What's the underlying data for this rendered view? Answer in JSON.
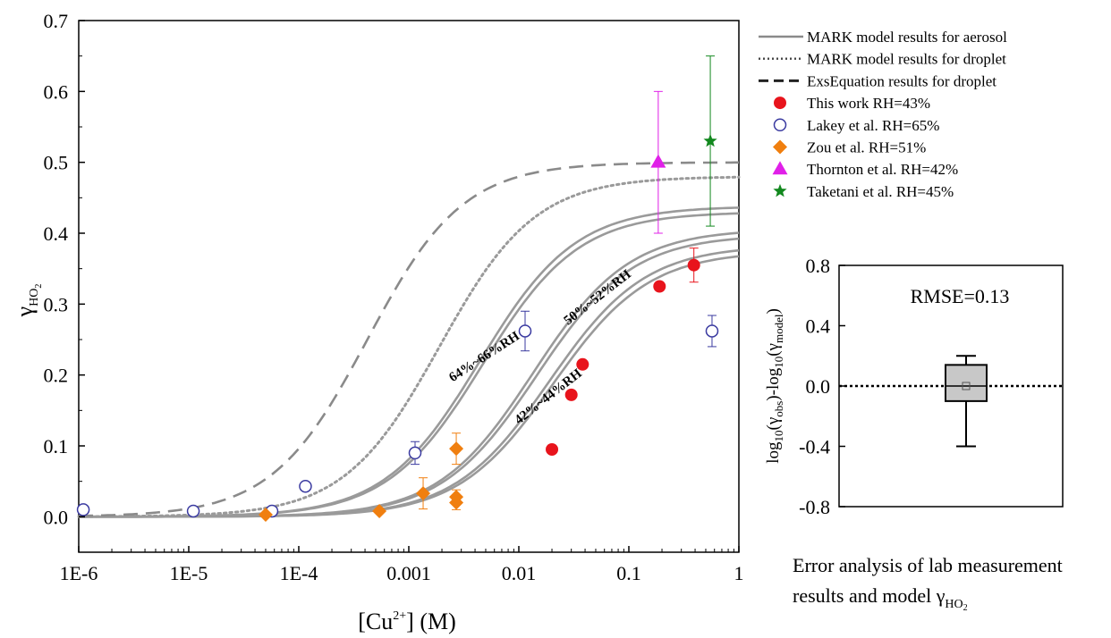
{
  "colors": {
    "model_line": "#9a9a9a",
    "this_work": "#e8141c",
    "lakey": "#3a3aa0",
    "zou": "#f07f0f",
    "thornton": "#e020e8",
    "taketani": "#12881e",
    "box_fill": "#c8c8c8"
  },
  "chart_data": [
    {
      "type": "scatter",
      "x_scale": "log",
      "xlim": [
        1e-06,
        1
      ],
      "ylim": [
        -0.05,
        0.7
      ],
      "xlabel_main": "[Cu",
      "xlabel_sup": "2+",
      "xlabel_tail": "] (M)",
      "ylabel_main": "γ",
      "ylabel_sub": "HO",
      "ylabel_subsub": "2",
      "x_ticks": [
        {
          "value": 1e-06,
          "label": "1E-6"
        },
        {
          "value": 1e-05,
          "label": "1E-5"
        },
        {
          "value": 0.0001,
          "label": "1E-4"
        },
        {
          "value": 0.001,
          "label": "0.001"
        },
        {
          "value": 0.01,
          "label": "0.01"
        },
        {
          "value": 0.1,
          "label": "0.1"
        },
        {
          "value": 1,
          "label": "1"
        }
      ],
      "y_ticks": [
        {
          "value": 0.0,
          "label": "0.0"
        },
        {
          "value": 0.1,
          "label": "0.1"
        },
        {
          "value": 0.2,
          "label": "0.2"
        },
        {
          "value": 0.3,
          "label": "0.3"
        },
        {
          "value": 0.4,
          "label": "0.4"
        },
        {
          "value": 0.5,
          "label": "0.5"
        },
        {
          "value": 0.6,
          "label": "0.6"
        },
        {
          "value": 0.7,
          "label": "0.7"
        }
      ],
      "model_curves": [
        {
          "group": "64%~66%RH",
          "style": "solid",
          "x50": 0.0044,
          "ymax": 0.438
        },
        {
          "group": "64%~66%RH",
          "style": "solid",
          "x50": 0.0047,
          "ymax": 0.43
        },
        {
          "group": "50%~52%RH",
          "style": "solid",
          "x50": 0.0135,
          "ymax": 0.406
        },
        {
          "group": "50%~52%RH",
          "style": "solid",
          "x50": 0.0145,
          "ymax": 0.398
        },
        {
          "group": "42%~44%RH",
          "style": "solid",
          "x50": 0.019,
          "ymax": 0.383
        },
        {
          "group": "42%~44%RH",
          "style": "solid",
          "x50": 0.0205,
          "ymax": 0.375
        },
        {
          "group": "droplet",
          "style": "dotted",
          "x50": 0.0019,
          "ymax": 0.48
        },
        {
          "group": "exsequation",
          "style": "dashed",
          "x50": 0.00042,
          "ymax": 0.5
        }
      ],
      "band_labels": [
        {
          "text": "64%~66%RH",
          "x": 0.0025,
          "y": 0.19,
          "angle": -33
        },
        {
          "text": "50%~52%RH",
          "x": 0.028,
          "y": 0.27,
          "angle": -38
        },
        {
          "text": "42%~44%RH",
          "x": 0.01,
          "y": 0.13,
          "angle": -38
        }
      ],
      "series": [
        {
          "name": "This work RH=43%",
          "marker": "filled-circle",
          "color_key": "this_work",
          "points": [
            {
              "x": 0.02,
              "y": 0.095
            },
            {
              "x": 0.03,
              "y": 0.172
            },
            {
              "x": 0.038,
              "y": 0.215
            },
            {
              "x": 0.19,
              "y": 0.325
            },
            {
              "x": 0.39,
              "y": 0.355,
              "err": 0.024
            }
          ]
        },
        {
          "name": "Lakey et al. RH=65%",
          "marker": "open-circle",
          "color_key": "lakey",
          "points": [
            {
              "x": 1.1e-06,
              "y": 0.01
            },
            {
              "x": 1.1e-05,
              "y": 0.008
            },
            {
              "x": 5.7e-05,
              "y": 0.008
            },
            {
              "x": 0.000115,
              "y": 0.043
            },
            {
              "x": 0.00114,
              "y": 0.09,
              "err": 0.016
            },
            {
              "x": 0.0114,
              "y": 0.262,
              "err": 0.028
            },
            {
              "x": 0.57,
              "y": 0.262,
              "err": 0.022
            }
          ]
        },
        {
          "name": "Zou et al. RH=51%",
          "marker": "diamond",
          "color_key": "zou",
          "points": [
            {
              "x": 5e-05,
              "y": 0.003
            },
            {
              "x": 0.00054,
              "y": 0.008
            },
            {
              "x": 0.00135,
              "y": 0.033,
              "err": 0.022
            },
            {
              "x": 0.0027,
              "y": 0.096,
              "err": 0.022
            },
            {
              "x": 0.0027,
              "y": 0.028,
              "err": 0.01
            },
            {
              "x": 0.0027,
              "y": 0.02,
              "err": 0.01
            }
          ]
        },
        {
          "name": "Thornton et al. RH=42%",
          "marker": "triangle",
          "color_key": "thornton",
          "points": [
            {
              "x": 0.185,
              "y": 0.5,
              "err": 0.1
            }
          ]
        },
        {
          "name": "Taketani et al. RH=45%",
          "marker": "star",
          "color_key": "taketani",
          "points": [
            {
              "x": 0.55,
              "y": 0.53,
              "err_up": 0.12,
              "err_down": 0.12
            }
          ]
        }
      ],
      "legend": {
        "placement": "right-top",
        "entries": [
          {
            "label": "MARK model results for aerosol",
            "style": "solid"
          },
          {
            "label": "MARK model results for droplet",
            "style": "dotted"
          },
          {
            "label": "ExsEquation results for  droplet",
            "style": "dashed"
          },
          {
            "label": "This work RH=43%",
            "marker": "filled-circle",
            "color_key": "this_work"
          },
          {
            "label": "Lakey et al. RH=65%",
            "marker": "open-circle",
            "color_key": "lakey"
          },
          {
            "label": "Zou et al. RH=51%",
            "marker": "diamond",
            "color_key": "zou"
          },
          {
            "label": "Thornton et al. RH=42%",
            "marker": "triangle",
            "color_key": "thornton"
          },
          {
            "label": "Taketani et al. RH=45%",
            "marker": "star",
            "color_key": "taketani"
          }
        ]
      }
    },
    {
      "type": "box",
      "ylim": [
        -0.8,
        0.8
      ],
      "y_ticks": [
        {
          "value": 0.8,
          "label": "0.8"
        },
        {
          "value": 0.4,
          "label": "0.4"
        },
        {
          "value": 0.0,
          "label": "0.0"
        },
        {
          "value": -0.4,
          "label": "-0.4"
        },
        {
          "value": -0.8,
          "label": "-0.8"
        }
      ],
      "ylabel": "log10(γobs)-log10(γmodel)",
      "annotation": "RMSE=0.13",
      "reference_line": 0.0,
      "box": {
        "whisker_low": -0.4,
        "q1": -0.1,
        "median": 0.0,
        "mean": 0.0,
        "q3": 0.14,
        "whisker_high": 0.2
      }
    }
  ],
  "caption": {
    "line1": "Error analysis of  lab measurement",
    "line2_main": "results and model γ",
    "line2_sub": "HO",
    "line2_subsub": "2"
  }
}
